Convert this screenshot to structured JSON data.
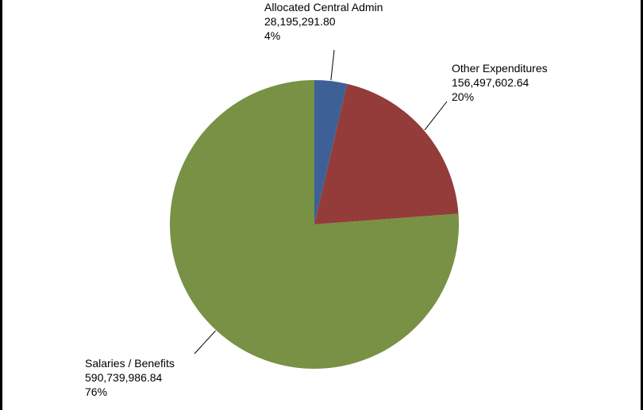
{
  "chart_data": {
    "type": "pie",
    "start_angle_deg": 0,
    "direction": "clockwise",
    "slices": [
      {
        "label": "Allocated Central Admin",
        "value": 28195291.8,
        "value_text": "28,195,291.80",
        "percent_text": "4%",
        "color": "#3D6196"
      },
      {
        "label": "Other Expenditures",
        "value": 156497602.64,
        "value_text": "156,497,602.64",
        "percent_text": "20%",
        "color": "#943C3A"
      },
      {
        "label": "Salaries / Benefits",
        "value": 590739986.84,
        "value_text": "590,739,986.84",
        "percent_text": "76%",
        "color": "#789145"
      }
    ]
  }
}
